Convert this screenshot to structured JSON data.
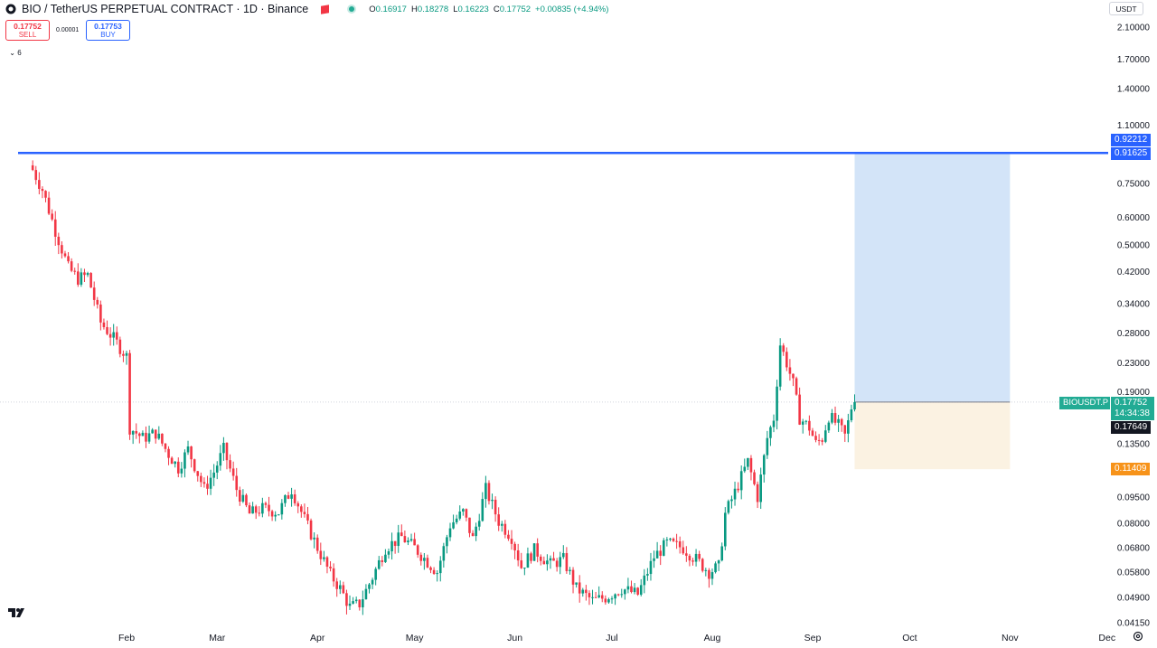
{
  "header": {
    "symbol_title": "BIO / TetherUS PERPETUAL CONTRACT · 1D · Binance",
    "ohlc": {
      "o_label": "O",
      "o_value": "0.16917",
      "h_label": "H",
      "h_value": "0.18278",
      "l_label": "L",
      "l_value": "0.16223",
      "c_label": "C",
      "c_value": "0.17752",
      "change": "+0.00835 (+4.94%)"
    }
  },
  "trade": {
    "sell_price": "0.17752",
    "sell_label": "SELL",
    "spread": "0.00001",
    "buy_price": "0.17753",
    "buy_label": "BUY"
  },
  "indicators_toggle": "6",
  "currency_button": "USDT",
  "price_tags": {
    "symbol_label": "BIOUSDT.P",
    "current_price": "0.17752",
    "countdown": "14:34:38",
    "ask_price": "0.17649",
    "hline_price": "0.91625",
    "target_price": "0.92212",
    "stop_price": "0.11409"
  },
  "colors": {
    "up": "#089981",
    "down": "#f23645",
    "hline": "#2962ff",
    "profit_zone": "#d3e4f8",
    "loss_zone": "#fbf2e2",
    "stop_tag": "#f7931a"
  },
  "chart_data": {
    "type": "candlestick",
    "y_scale": "log",
    "ylim": [
      0.04,
      2.3
    ],
    "yticks": [
      2.1,
      1.7,
      1.4,
      1.1,
      0.75,
      0.6,
      0.5,
      0.42,
      0.34,
      0.28,
      0.23,
      0.19,
      0.135,
      0.095,
      0.08,
      0.068,
      0.058,
      0.049,
      0.0415
    ],
    "ytick_labels": [
      "2.10000",
      "1.70000",
      "1.40000",
      "1.10000",
      "0.75000",
      "0.60000",
      "0.50000",
      "0.42000",
      "0.34000",
      "0.28000",
      "0.23000",
      "0.19000",
      "0.13500",
      "0.09500",
      "0.08000",
      "0.06800",
      "0.05800",
      "0.04900",
      "0.04150"
    ],
    "x_months": [
      "Feb",
      "Mar",
      "Apr",
      "May",
      "Jun",
      "Jul",
      "Aug",
      "Sep",
      "Oct",
      "Nov",
      "Dec"
    ],
    "first_candle_date": "2025-01-03",
    "last_candle_date": "2025-09-14",
    "hline_value": 0.91625,
    "position": {
      "entry": 0.17752,
      "target": 0.92212,
      "stop": 0.11409,
      "start_date": "2025-09-14",
      "end_date": "2025-11-01"
    },
    "anchors": [
      {
        "date": "2025-01-03",
        "close": 0.82
      },
      {
        "date": "2025-01-06",
        "close": 0.72
      },
      {
        "date": "2025-01-10",
        "close": 0.55
      },
      {
        "date": "2025-01-14",
        "close": 0.43
      },
      {
        "date": "2025-01-17",
        "close": 0.4
      },
      {
        "date": "2025-01-20",
        "close": 0.41
      },
      {
        "date": "2025-01-24",
        "close": 0.3
      },
      {
        "date": "2025-01-28",
        "close": 0.27
      },
      {
        "date": "2025-02-01",
        "close": 0.24
      },
      {
        "date": "2025-02-02",
        "close": 0.15
      },
      {
        "date": "2025-02-06",
        "close": 0.14
      },
      {
        "date": "2025-02-10",
        "close": 0.145
      },
      {
        "date": "2025-02-14",
        "close": 0.126
      },
      {
        "date": "2025-02-17",
        "close": 0.115
      },
      {
        "date": "2025-02-20",
        "close": 0.13
      },
      {
        "date": "2025-02-25",
        "close": 0.1
      },
      {
        "date": "2025-02-28",
        "close": 0.112
      },
      {
        "date": "2025-03-03",
        "close": 0.13
      },
      {
        "date": "2025-03-07",
        "close": 0.1
      },
      {
        "date": "2025-03-11",
        "close": 0.085
      },
      {
        "date": "2025-03-15",
        "close": 0.088
      },
      {
        "date": "2025-03-20",
        "close": 0.086
      },
      {
        "date": "2025-03-24",
        "close": 0.1
      },
      {
        "date": "2025-03-28",
        "close": 0.082
      },
      {
        "date": "2025-04-01",
        "close": 0.068
      },
      {
        "date": "2025-04-05",
        "close": 0.057
      },
      {
        "date": "2025-04-08",
        "close": 0.052
      },
      {
        "date": "2025-04-11",
        "close": 0.046
      },
      {
        "date": "2025-04-14",
        "close": 0.047
      },
      {
        "date": "2025-04-18",
        "close": 0.056
      },
      {
        "date": "2025-04-22",
        "close": 0.068
      },
      {
        "date": "2025-04-27",
        "close": 0.073
      },
      {
        "date": "2025-05-01",
        "close": 0.068
      },
      {
        "date": "2025-05-05",
        "close": 0.062
      },
      {
        "date": "2025-05-08",
        "close": 0.058
      },
      {
        "date": "2025-05-12",
        "close": 0.079
      },
      {
        "date": "2025-05-16",
        "close": 0.086
      },
      {
        "date": "2025-05-19",
        "close": 0.072
      },
      {
        "date": "2025-05-23",
        "close": 0.1
      },
      {
        "date": "2025-05-27",
        "close": 0.081
      },
      {
        "date": "2025-05-31",
        "close": 0.073
      },
      {
        "date": "2025-06-03",
        "close": 0.06
      },
      {
        "date": "2025-06-07",
        "close": 0.067
      },
      {
        "date": "2025-06-12",
        "close": 0.061
      },
      {
        "date": "2025-06-16",
        "close": 0.063
      },
      {
        "date": "2025-06-20",
        "close": 0.052
      },
      {
        "date": "2025-06-25",
        "close": 0.048
      },
      {
        "date": "2025-06-29",
        "close": 0.049
      },
      {
        "date": "2025-07-04",
        "close": 0.052
      },
      {
        "date": "2025-07-09",
        "close": 0.05
      },
      {
        "date": "2025-07-14",
        "close": 0.064
      },
      {
        "date": "2025-07-18",
        "close": 0.07
      },
      {
        "date": "2025-07-23",
        "close": 0.068
      },
      {
        "date": "2025-07-27",
        "close": 0.063
      },
      {
        "date": "2025-07-31",
        "close": 0.058
      },
      {
        "date": "2025-08-03",
        "close": 0.06
      },
      {
        "date": "2025-08-05",
        "close": 0.085
      },
      {
        "date": "2025-08-08",
        "close": 0.098
      },
      {
        "date": "2025-08-12",
        "close": 0.12
      },
      {
        "date": "2025-08-15",
        "close": 0.095
      },
      {
        "date": "2025-08-18",
        "close": 0.14
      },
      {
        "date": "2025-08-20",
        "close": 0.16
      },
      {
        "date": "2025-08-22",
        "close": 0.26
      },
      {
        "date": "2025-08-24",
        "close": 0.23
      },
      {
        "date": "2025-08-26",
        "close": 0.2
      },
      {
        "date": "2025-08-28",
        "close": 0.16
      },
      {
        "date": "2025-08-31",
        "close": 0.15
      },
      {
        "date": "2025-09-02",
        "close": 0.135
      },
      {
        "date": "2025-09-04",
        "close": 0.14
      },
      {
        "date": "2025-09-06",
        "close": 0.162
      },
      {
        "date": "2025-09-09",
        "close": 0.152
      },
      {
        "date": "2025-09-11",
        "close": 0.142
      },
      {
        "date": "2025-09-13",
        "close": 0.16917
      },
      {
        "date": "2025-09-14",
        "close": 0.17752
      }
    ]
  }
}
